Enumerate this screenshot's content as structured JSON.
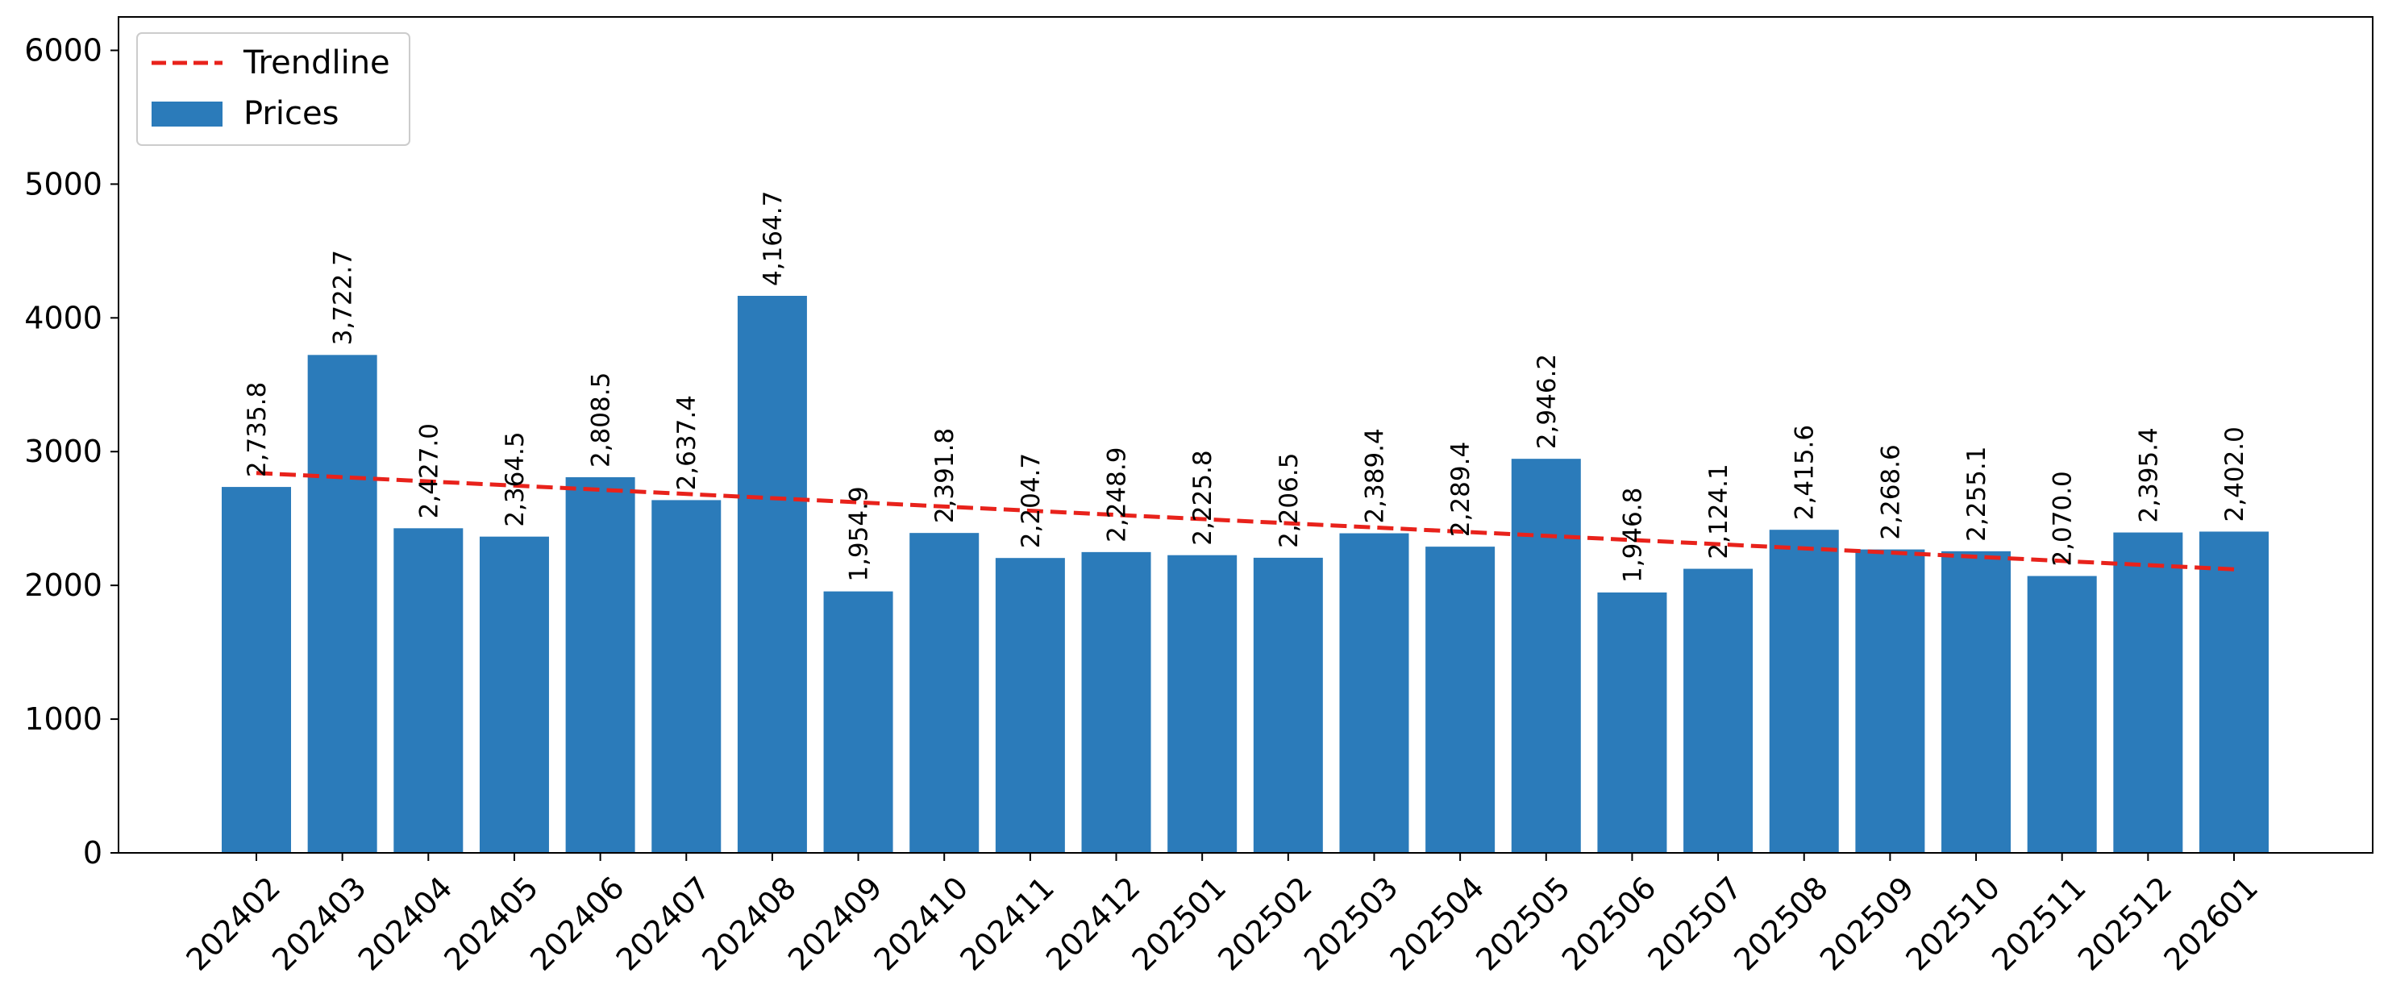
{
  "chart_data": {
    "type": "bar",
    "categories": [
      "202402",
      "202403",
      "202404",
      "202405",
      "202406",
      "202407",
      "202408",
      "202409",
      "202410",
      "202411",
      "202412",
      "202501",
      "202502",
      "202503",
      "202504",
      "202505",
      "202506",
      "202507",
      "202508",
      "202509",
      "202510",
      "202511",
      "202512",
      "202601"
    ],
    "series": [
      {
        "name": "Prices",
        "values": [
          2735.8,
          3722.7,
          2427.0,
          2364.5,
          2808.5,
          2637.4,
          4164.7,
          1954.9,
          2391.8,
          2204.7,
          2248.9,
          2225.8,
          2206.5,
          2389.4,
          2289.4,
          2946.2,
          1946.8,
          2124.1,
          2415.6,
          2268.6,
          2255.1,
          2070.0,
          2395.4,
          2402.0
        ],
        "color": "#2b7bba"
      },
      {
        "name": "Trendline",
        "type": "line",
        "style": "dashed",
        "values_start": 2840,
        "values_end": 2120,
        "color": "#e8221b"
      }
    ],
    "data_labels": [
      "2,735.8",
      "3,722.7",
      "2,427.0",
      "2,364.5",
      "2,808.5",
      "2,637.4",
      "4,164.7",
      "1,954.9",
      "2,391.8",
      "2,204.7",
      "2,248.9",
      "2,225.8",
      "2,206.5",
      "2,389.4",
      "2,289.4",
      "2,946.2",
      "1,946.8",
      "2,124.1",
      "2,415.6",
      "2,268.6",
      "2,255.1",
      "2,070.0",
      "2,395.4",
      "2,402.0"
    ],
    "yticks": [
      "0",
      "1000",
      "2000",
      "3000",
      "4000",
      "5000",
      "6000"
    ],
    "ylim": [
      0,
      6250
    ],
    "grid": false,
    "legend_position": "top-left",
    "title": "",
    "xlabel": "",
    "ylabel": ""
  }
}
